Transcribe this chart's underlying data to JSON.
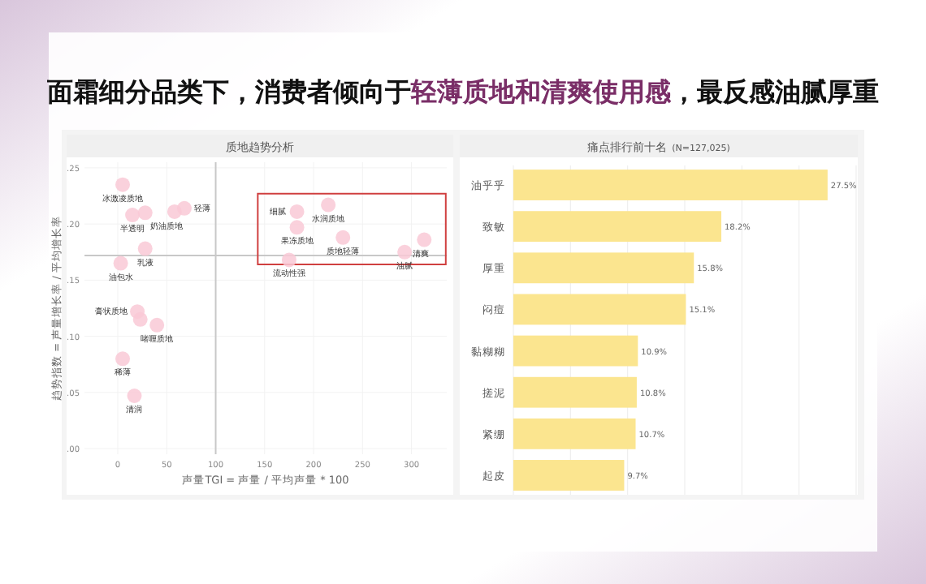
{
  "chart_data": [
    {
      "type": "scatter",
      "title": "质地趋势分析",
      "xlabel": "声量TGI = 声量 / 平均声量 * 100",
      "ylabel": "趋势指数 = 声量增长率 / 平均增长率",
      "x": [
        5,
        15,
        28,
        58,
        68,
        28,
        3,
        20,
        23,
        40,
        5,
        17,
        183,
        215,
        183,
        230,
        175,
        293,
        313
      ],
      "values": [
        0.235,
        0.208,
        0.21,
        0.211,
        0.214,
        0.178,
        0.165,
        0.122,
        0.115,
        0.11,
        0.08,
        0.047,
        0.211,
        0.217,
        0.197,
        0.188,
        0.168,
        0.175,
        0.186
      ],
      "color": "#f9c9d6",
      "marker": "circle",
      "grid": true,
      "xlim": [
        -34,
        336
      ],
      "xticks": [
        0,
        50,
        100,
        150,
        200,
        250,
        300
      ],
      "ylim": [
        -0.005,
        0.255
      ],
      "yticks": [
        {
          "value": 0,
          "label": ".00"
        },
        {
          "value": 0.05,
          "label": ".05"
        },
        {
          "value": 0.1,
          "label": ".10"
        },
        {
          "value": 0.15,
          "label": ".15"
        },
        {
          "value": 0.2,
          "label": ".20"
        },
        {
          "value": 0.25,
          "label": ".25"
        }
      ],
      "ref_lines": [
        {
          "axis": "x",
          "value": 100,
          "color": "#c8c8c8"
        },
        {
          "axis": "y",
          "value": 0.172,
          "color": "#c8c8c8"
        }
      ],
      "annotations": [
        "面霜细分品类下，消费者倾向于",
        "轻薄质地和清爽使用感",
        "，最反感油腻厚重",
        {
          "text": "冰激凌质地",
          "x": 5,
          "y": 0.235
        },
        {
          "text": "半透明",
          "x": 15,
          "y": 0.208
        },
        {
          "text": "奶油质地",
          "x": 28,
          "y": 0.21
        },
        {
          "text": "轻薄",
          "x": 68,
          "y": 0.214
        },
        {
          "text": "乳液",
          "x": 28,
          "y": 0.178
        },
        {
          "text": "油包水",
          "x": 3,
          "y": 0.165
        },
        {
          "text": "膏状质地",
          "x": 20,
          "y": 0.122
        },
        {
          "text": "啫喱质地",
          "x": 40,
          "y": 0.11
        },
        {
          "text": "稀薄",
          "x": 5,
          "y": 0.08
        },
        {
          "text": "清润",
          "x": 17,
          "y": 0.047
        },
        {
          "text": "细腻",
          "x": 183,
          "y": 0.211
        },
        {
          "text": "水润质地",
          "x": 215,
          "y": 0.217
        },
        {
          "text": "果冻质地",
          "x": 183,
          "y": 0.197
        },
        {
          "text": "质地轻薄",
          "x": 230,
          "y": 0.188
        },
        {
          "text": "流动性强",
          "x": 175,
          "y": 0.168
        },
        {
          "text": "油腻",
          "x": 293,
          "y": 0.175
        },
        {
          "text": "清爽",
          "x": 313,
          "y": 0.186
        }
      ]
    },
    {
      "type": "bar",
      "orientation": "horizontal",
      "title": "痛点排行前十名",
      "subtitle": "(N=127,025)",
      "categories": [
        "油乎乎",
        "致敏",
        "厚重",
        "闷痘",
        "黏糊糊",
        "搓泥",
        "紧绷",
        "起皮"
      ],
      "values": [
        27.5,
        18.2,
        15.8,
        15.1,
        10.9,
        10.8,
        10.7,
        9.7
      ],
      "value_labels": [
        "27.5%",
        "18.2%",
        "15.8%",
        "15.1%",
        "10.9%",
        "10.8%",
        "10.7%",
        "9.7%"
      ],
      "color": "#fbe58f",
      "grid": "x",
      "tick_labels": "y",
      "xlim": [
        0,
        30
      ],
      "xticks": [
        {
          "value": 0,
          "label": null
        },
        {
          "value": 5,
          "label": null
        },
        {
          "value": 10,
          "label": null
        },
        {
          "value": 15,
          "label": null
        },
        {
          "value": 20,
          "label": null
        },
        {
          "value": 25,
          "label": null
        },
        {
          "value": 30,
          "label": null
        }
      ]
    }
  ]
}
